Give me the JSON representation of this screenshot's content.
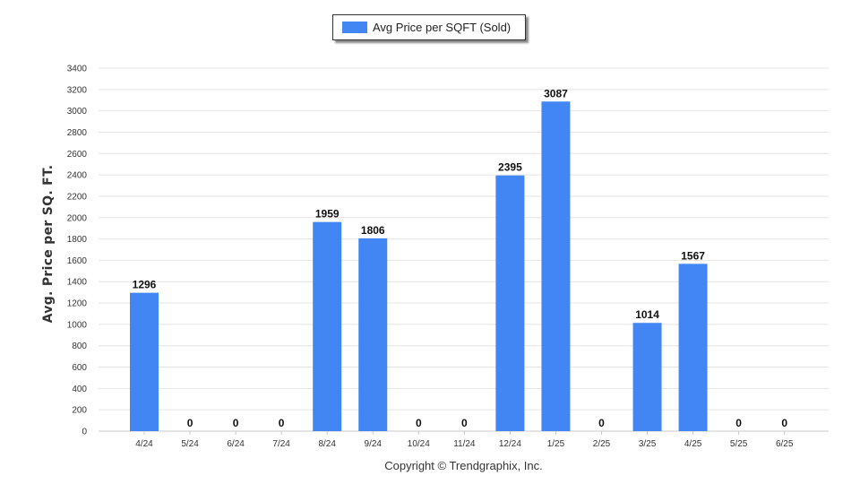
{
  "chart_data": {
    "type": "bar",
    "legend": "Avg Price per SQFT (Sold)",
    "ylabel": "Avg. Price per SQ. FT.",
    "footer": "Copyright © Trendgraphix, Inc.",
    "categories": [
      "4/24",
      "5/24",
      "6/24",
      "7/24",
      "8/24",
      "9/24",
      "10/24",
      "11/24",
      "12/24",
      "1/25",
      "2/25",
      "3/25",
      "4/25",
      "5/25",
      "6/25"
    ],
    "values": [
      1296,
      0,
      0,
      0,
      1959,
      1806,
      0,
      0,
      2395,
      3087,
      0,
      1014,
      1567,
      0,
      0
    ],
    "ylim": [
      0,
      3400
    ],
    "yticks": [
      0,
      200,
      400,
      600,
      800,
      1000,
      1200,
      1400,
      1600,
      1800,
      2000,
      2200,
      2400,
      2600,
      2800,
      3000,
      3200,
      3400
    ],
    "bar_color": "#4286f4",
    "grid": true,
    "legend_position": "top-center"
  }
}
